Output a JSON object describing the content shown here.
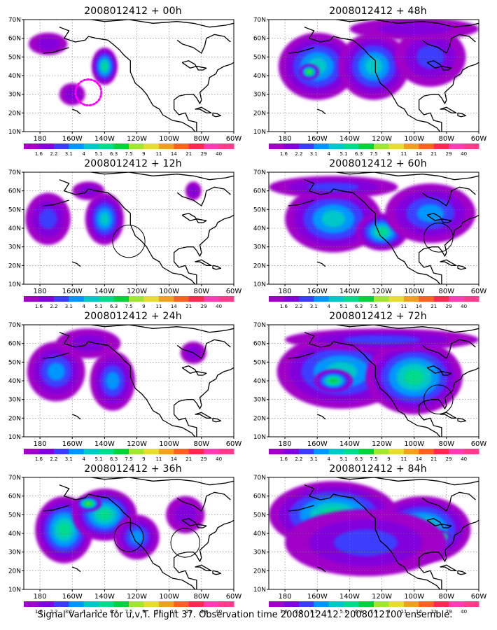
{
  "caption": "Signal Variance for u,v,T. Flight 37. Observation time 2008012412. 2008012100 ensemble.",
  "colorbar": {
    "labels": [
      "1.6",
      "2.2",
      "3.1",
      "4",
      "5.1",
      "6.3",
      "7.5",
      "9",
      "11",
      "14",
      "21",
      "29",
      "40"
    ],
    "colors": [
      "#a000c8",
      "#8200dc",
      "#3c3cff",
      "#0096ff",
      "#00c8c8",
      "#00dc8c",
      "#00d23c",
      "#a0e632",
      "#e6dc32",
      "#f0a020",
      "#fa6020",
      "#ff2850",
      "#ff3cb4"
    ]
  },
  "axes": {
    "x_ticks": [
      "180",
      "160W",
      "140W",
      "120W",
      "100W",
      "80W",
      "60W"
    ],
    "y_ticks": [
      "10N",
      "20N",
      "30N",
      "40N",
      "50N",
      "60N",
      "70N"
    ],
    "lon_range": [
      -190,
      -60
    ],
    "lat_range": [
      10,
      70
    ],
    "grid": true
  },
  "chart_data": [
    {
      "type": "heatmap",
      "title": "2008012412 + 00h",
      "blobs": [
        {
          "lon": -140,
          "lat": 45,
          "rx": 8,
          "ry": 10,
          "level": 5
        },
        {
          "lon": -175,
          "lat": 57,
          "rx": 12,
          "ry": 6,
          "level": 1
        },
        {
          "lon": -160,
          "lat": 30,
          "rx": 8,
          "ry": 6,
          "level": 1
        }
      ],
      "circles": [],
      "dotted_circle": {
        "lon": -150,
        "lat": 31,
        "r": 8
      }
    },
    {
      "type": "heatmap",
      "title": "2008012412 + 12h",
      "blobs": [
        {
          "lon": -140,
          "lat": 45,
          "rx": 12,
          "ry": 14,
          "level": 4
        },
        {
          "lon": -175,
          "lat": 45,
          "rx": 14,
          "ry": 14,
          "level": 2
        },
        {
          "lon": -150,
          "lat": 60,
          "rx": 10,
          "ry": 5,
          "level": 1
        },
        {
          "lon": -85,
          "lat": 60,
          "rx": 5,
          "ry": 5,
          "level": 1
        }
      ],
      "circles": [
        {
          "lon": -125,
          "lat": 33,
          "r": 10
        }
      ]
    },
    {
      "type": "heatmap",
      "title": "2008012412 + 24h",
      "blobs": [
        {
          "lon": -170,
          "lat": 45,
          "rx": 18,
          "ry": 16,
          "level": 3
        },
        {
          "lon": -135,
          "lat": 40,
          "rx": 14,
          "ry": 16,
          "level": 3
        },
        {
          "lon": -150,
          "lat": 60,
          "rx": 20,
          "ry": 8,
          "level": 1
        },
        {
          "lon": -85,
          "lat": 55,
          "rx": 8,
          "ry": 6,
          "level": 1
        }
      ],
      "circles": []
    },
    {
      "type": "heatmap",
      "title": "2008012412 + 36h",
      "blobs": [
        {
          "lon": -165,
          "lat": 42,
          "rx": 18,
          "ry": 18,
          "level": 5
        },
        {
          "lon": -140,
          "lat": 50,
          "rx": 20,
          "ry": 14,
          "level": 5
        },
        {
          "lon": -150,
          "lat": 56,
          "rx": 8,
          "ry": 4,
          "level": 7
        },
        {
          "lon": -120,
          "lat": 38,
          "rx": 14,
          "ry": 12,
          "level": 3
        },
        {
          "lon": -90,
          "lat": 50,
          "rx": 12,
          "ry": 10,
          "level": 1
        }
      ],
      "circles": [
        {
          "lon": -125,
          "lat": 38,
          "r": 9
        },
        {
          "lon": -90,
          "lat": 35,
          "r": 9
        }
      ]
    },
    {
      "type": "heatmap",
      "title": "2008012412 + 48h",
      "blobs": [
        {
          "lon": -160,
          "lat": 45,
          "rx": 24,
          "ry": 18,
          "level": 4
        },
        {
          "lon": -125,
          "lat": 45,
          "rx": 22,
          "ry": 18,
          "level": 4
        },
        {
          "lon": -165,
          "lat": 42,
          "rx": 6,
          "ry": 4,
          "level": 7
        },
        {
          "lon": -90,
          "lat": 50,
          "rx": 22,
          "ry": 16,
          "level": 2
        },
        {
          "lon": -100,
          "lat": 65,
          "rx": 40,
          "ry": 6,
          "level": 1
        }
      ],
      "circles": []
    },
    {
      "type": "heatmap",
      "title": "2008012412 + 60h",
      "blobs": [
        {
          "lon": -150,
          "lat": 45,
          "rx": 30,
          "ry": 18,
          "level": 4
        },
        {
          "lon": -120,
          "lat": 38,
          "rx": 16,
          "ry": 10,
          "level": 5
        },
        {
          "lon": -90,
          "lat": 48,
          "rx": 28,
          "ry": 16,
          "level": 3
        },
        {
          "lon": -150,
          "lat": 62,
          "rx": 40,
          "ry": 6,
          "level": 2
        }
      ],
      "circles": [
        {
          "lon": -85,
          "lat": 35,
          "r": 9
        }
      ]
    },
    {
      "type": "heatmap",
      "title": "2008012412 + 72h",
      "blobs": [
        {
          "lon": -145,
          "lat": 45,
          "rx": 40,
          "ry": 20,
          "level": 4
        },
        {
          "lon": -100,
          "lat": 42,
          "rx": 30,
          "ry": 20,
          "level": 5
        },
        {
          "lon": -150,
          "lat": 40,
          "rx": 12,
          "ry": 6,
          "level": 6
        },
        {
          "lon": -120,
          "lat": 62,
          "rx": 60,
          "ry": 6,
          "level": 2
        }
      ],
      "circles": [
        {
          "lon": -85,
          "lat": 30,
          "r": 9
        }
      ]
    },
    {
      "type": "heatmap",
      "title": "2008012412 + 84h",
      "blobs": [
        {
          "lon": -150,
          "lat": 50,
          "rx": 40,
          "ry": 18,
          "level": 5
        },
        {
          "lon": -95,
          "lat": 42,
          "rx": 30,
          "ry": 18,
          "level": 5
        },
        {
          "lon": -110,
          "lat": 40,
          "rx": 6,
          "ry": 3,
          "level": 8
        },
        {
          "lon": -82,
          "lat": 38,
          "rx": 4,
          "ry": 3,
          "level": 8
        },
        {
          "lon": -130,
          "lat": 35,
          "rx": 50,
          "ry": 18,
          "level": 2
        }
      ],
      "circles": []
    }
  ]
}
